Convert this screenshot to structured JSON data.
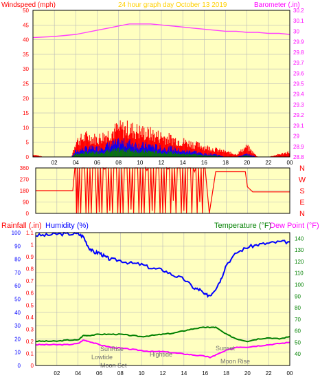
{
  "header": {
    "left_label": "Windspeed (mph)",
    "center_label": "24 hour graph day   October 13 2019",
    "right_label": "Barometer (.in)"
  },
  "colors": {
    "plot_bg": "#ffffc0",
    "grid": "#b8b8b8",
    "wind_axis": "#ff0000",
    "baro_axis": "#ff00ff",
    "baro_line": "#ff40ff",
    "humidity": "#0000ff",
    "temperature": "#008000",
    "dewpoint": "#ff00ff",
    "direction": "#ff0000",
    "center_label": "#ffd000",
    "events": "#707070"
  },
  "time_ticks": [
    "02",
    "04",
    "06",
    "08",
    "10",
    "12",
    "14",
    "16",
    "18",
    "20",
    "22",
    "00"
  ],
  "direction_labels": [
    "N",
    "W",
    "S",
    "E",
    "N"
  ],
  "bottom_legends": {
    "rainfall": "Rainfall (.in)",
    "humidity": "Humidity (%)",
    "temperature": "Temperature (°F)",
    "dewpoint": "Dew Point (°F)"
  },
  "events": {
    "sunrise": "SunRise",
    "lowtide": "Lowtide",
    "moonset": "Moon Set",
    "hightide": "Hightide",
    "sunset": "Sunset",
    "moonrise": "Moon Rise"
  },
  "chart_data": [
    {
      "type": "line",
      "x_label": "hour",
      "xlim": [
        0,
        24
      ],
      "y_left": {
        "label": "Windspeed (mph)",
        "lim": [
          0,
          50
        ],
        "ticks": [
          "0",
          "5",
          "10",
          "15",
          "20",
          "25",
          "30",
          "35",
          "40",
          "45",
          "50"
        ]
      },
      "y_right": {
        "label": "Barometer (.in)",
        "lim": [
          28.8,
          30.2
        ],
        "ticks": [
          "28.8",
          "28.9",
          "29",
          "29.1",
          "29.2",
          "29.3",
          "29.4",
          "29.5",
          "29.6",
          "29.7",
          "29.8",
          "29.9",
          "30",
          "30.1",
          "30.2"
        ]
      },
      "series": [
        {
          "name": "Barometer",
          "axis": "right",
          "x": [
            0,
            1,
            2,
            3,
            4,
            5,
            6,
            7,
            8,
            9,
            10,
            11,
            12,
            13,
            14,
            15,
            16,
            17,
            18,
            19,
            20,
            21,
            22,
            23,
            24
          ],
          "y": [
            29.94,
            29.945,
            29.95,
            29.96,
            29.97,
            29.99,
            30.01,
            30.03,
            30.05,
            30.07,
            30.07,
            30.07,
            30.06,
            30.05,
            30.04,
            30.03,
            30.02,
            30.01,
            30.0,
            30.0,
            29.99,
            29.99,
            29.98,
            29.98,
            29.97
          ]
        },
        {
          "name": "Wind gust",
          "axis": "left",
          "x": [
            0,
            1,
            2,
            3,
            3.6,
            4,
            5,
            6,
            7,
            8,
            9,
            10,
            11,
            12,
            13,
            14,
            15,
            16,
            17,
            18,
            19,
            20,
            21,
            22,
            23,
            24
          ],
          "y": [
            1,
            0,
            0,
            0,
            0,
            6,
            8,
            7,
            9,
            11,
            11,
            10,
            9,
            8,
            7,
            6,
            5,
            4,
            3,
            2,
            1,
            4,
            0,
            0,
            1,
            2
          ]
        },
        {
          "name": "Wind speed",
          "axis": "left",
          "x": [
            0,
            3.6,
            4,
            5,
            6,
            7,
            8,
            9,
            10,
            11,
            12,
            13,
            14,
            15,
            16,
            17,
            18,
            19,
            20,
            21,
            24
          ],
          "y": [
            0,
            0,
            2,
            3,
            3,
            4,
            5,
            5,
            4,
            4,
            3,
            3,
            2,
            2,
            1,
            1,
            0,
            0,
            1,
            0,
            0
          ]
        }
      ]
    },
    {
      "type": "line",
      "y_left": {
        "label": "",
        "lim": [
          0,
          360
        ],
        "ticks": [
          "0",
          "90",
          "180",
          "270",
          "360"
        ]
      },
      "xlim": [
        0,
        24
      ],
      "series": [
        {
          "name": "Wind direction",
          "x": [
            0,
            3.5,
            3.7,
            4,
            4.5,
            5,
            5.5,
            6,
            6.5,
            7,
            7.5,
            8,
            8.5,
            9,
            9.5,
            10,
            10.5,
            11,
            11.5,
            12,
            12.5,
            13,
            13.5,
            14,
            14.5,
            15,
            15.5,
            16,
            16.4,
            17,
            18,
            19,
            19.8,
            20,
            20.5,
            24
          ],
          "y": [
            180,
            180,
            360,
            0,
            360,
            0,
            360,
            10,
            350,
            20,
            360,
            0,
            360,
            30,
            360,
            0,
            340,
            20,
            360,
            0,
            350,
            100,
            360,
            20,
            360,
            330,
            90,
            360,
            0,
            330,
            330,
            330,
            330,
            210,
            170,
            170
          ]
        }
      ]
    },
    {
      "type": "line",
      "xlim": [
        0,
        24
      ],
      "y_left": {
        "label": "Humidity (%)",
        "lim": [
          0,
          100
        ],
        "ticks": [
          "0",
          "10",
          "20",
          "30",
          "40",
          "50",
          "60",
          "70",
          "80",
          "90",
          "100"
        ]
      },
      "y_rain": {
        "label": "Rainfall (.in)",
        "lim": [
          0,
          1.1
        ],
        "ticks": [
          "0",
          "0.1",
          "0.2",
          "0.3",
          "0.4",
          "0.5",
          "0.6",
          "0.7",
          "0.8",
          "0.9",
          "1",
          "1.1"
        ]
      },
      "y_right": {
        "label": "Temperature (°F)",
        "lim": [
          30,
          145
        ],
        "ticks": [
          "40",
          "50",
          "60",
          "70",
          "80",
          "90",
          "100",
          "110",
          "120",
          "130",
          "140"
        ]
      },
      "series": [
        {
          "name": "Humidity",
          "axis": "left",
          "x": [
            0,
            1,
            2,
            3,
            4,
            4.5,
            5,
            5.5,
            6,
            6.5,
            7,
            8,
            9,
            10,
            11,
            12,
            13,
            14,
            15,
            15.5,
            16,
            16.5,
            17,
            17.5,
            18,
            19,
            20,
            21,
            22,
            23,
            24
          ],
          "y": [
            98,
            98,
            99,
            99,
            99,
            97,
            89,
            85,
            85,
            82,
            80,
            79,
            77,
            76,
            73,
            72,
            68,
            65,
            58,
            57,
            53,
            53,
            58,
            65,
            76,
            85,
            89,
            91,
            92,
            93,
            93
          ]
        },
        {
          "name": "Temperature",
          "axis": "right",
          "x": [
            0,
            1,
            2,
            3,
            4,
            4.5,
            5,
            6,
            7,
            8,
            9,
            10,
            11,
            12,
            13,
            14,
            15,
            16,
            16.5,
            17,
            18,
            19,
            20,
            21,
            22,
            23,
            24
          ],
          "y": [
            51,
            51,
            51,
            52,
            52,
            56,
            56,
            57,
            57,
            57,
            56,
            55,
            56,
            57,
            58,
            60,
            62,
            63,
            63,
            63,
            57,
            53,
            51,
            53,
            54,
            53,
            55
          ]
        },
        {
          "name": "Dew Point",
          "axis": "right",
          "x": [
            0,
            1,
            2,
            3,
            4,
            4.5,
            5,
            6,
            7,
            8,
            9,
            10,
            11,
            12,
            13,
            14,
            15,
            16,
            16.5,
            17,
            18,
            19,
            20,
            21,
            22,
            23,
            24
          ],
          "y": [
            48,
            48,
            48,
            48,
            49,
            52,
            51,
            48,
            46,
            45,
            44,
            43,
            42,
            42,
            41,
            40,
            39,
            38,
            37,
            39,
            43,
            46,
            46,
            47,
            48,
            49,
            50
          ]
        },
        {
          "name": "Rainfall",
          "axis": "rain",
          "x": [
            0,
            24
          ],
          "y": [
            0,
            0
          ]
        }
      ]
    }
  ]
}
